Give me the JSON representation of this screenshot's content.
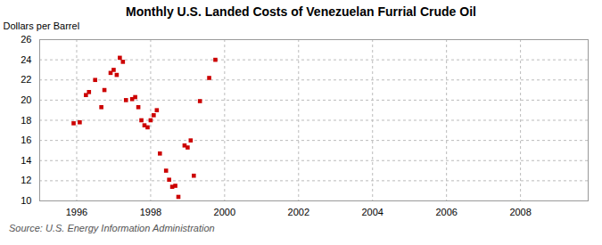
{
  "chart_data": {
    "type": "scatter",
    "title": "Monthly U.S. Landed Costs of Venezuelan Furrial Crude Oil",
    "ylabel": "Dollars per Barrel",
    "source": "Source: U.S. Energy Information Administration",
    "x": [
      1995.917,
      1996.083,
      1996.25,
      1996.333,
      1996.5,
      1996.667,
      1996.75,
      1996.917,
      1997.0,
      1997.083,
      1997.167,
      1997.25,
      1997.333,
      1997.5,
      1997.583,
      1997.667,
      1997.75,
      1997.833,
      1997.917,
      1998.0,
      1998.083,
      1998.167,
      1998.25,
      1998.417,
      1998.5,
      1998.583,
      1998.667,
      1998.75,
      1998.917,
      1999.0,
      1999.083,
      1999.167,
      1999.333,
      1999.583,
      1999.75
    ],
    "values": [
      17.7,
      17.8,
      20.5,
      20.8,
      22.0,
      19.3,
      21.0,
      22.7,
      23.0,
      22.5,
      24.2,
      23.8,
      20.0,
      20.1,
      20.3,
      19.3,
      18.0,
      17.5,
      17.3,
      18.0,
      18.5,
      19.0,
      14.7,
      13.0,
      12.1,
      11.4,
      11.5,
      10.4,
      15.5,
      15.3,
      16.0,
      12.5,
      19.9,
      22.2,
      24.0
    ],
    "color": "#cc0000",
    "marker": "square",
    "xlim": [
      1995.0,
      2009.83
    ],
    "xticks": [
      1996,
      1998,
      2000,
      2002,
      2004,
      2006,
      2008
    ],
    "ylim": [
      10,
      26
    ],
    "yticks": [
      10,
      12,
      14,
      16,
      18,
      20,
      22,
      24,
      26
    ],
    "grid": true
  }
}
